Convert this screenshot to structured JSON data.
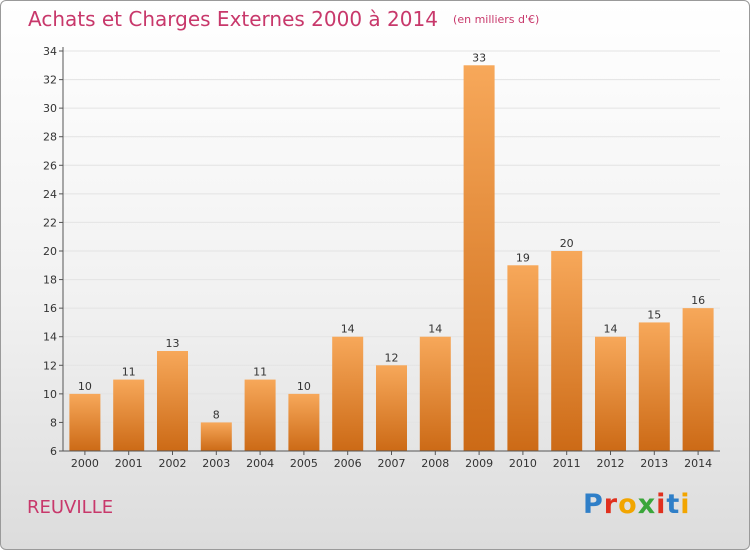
{
  "header": {
    "title": "Achats et Charges Externes 2000 à 2014",
    "unit": "(en milliers d'€)"
  },
  "footer": {
    "commune": "REUVILLE",
    "logo": {
      "text": "Proxiti",
      "letter_colors": [
        "#2f7fc8",
        "#e0301e",
        "#f2a500",
        "#3aa63a",
        "#e0301e",
        "#2f7fc8",
        "#f2a500"
      ]
    }
  },
  "colors": {
    "bar_top": "#f7a85a",
    "bar_bottom": "#cc6a16",
    "axis": "#555555",
    "grid": "#e3e3e3"
  },
  "chart_data": {
    "type": "bar",
    "categories": [
      "2000",
      "2001",
      "2002",
      "2003",
      "2004",
      "2005",
      "2006",
      "2007",
      "2008",
      "2009",
      "2010",
      "2011",
      "2012",
      "2013",
      "2014"
    ],
    "values": [
      10,
      11,
      13,
      8,
      11,
      10,
      14,
      12,
      14,
      33,
      19,
      20,
      14,
      15,
      16
    ],
    "title": "Achats et Charges Externes 2000 à 2014",
    "ylim": [
      6,
      34
    ],
    "yticks": [
      6,
      8,
      10,
      12,
      14,
      16,
      18,
      20,
      22,
      24,
      26,
      28,
      30,
      32,
      34
    ],
    "grid": "horizontal"
  }
}
